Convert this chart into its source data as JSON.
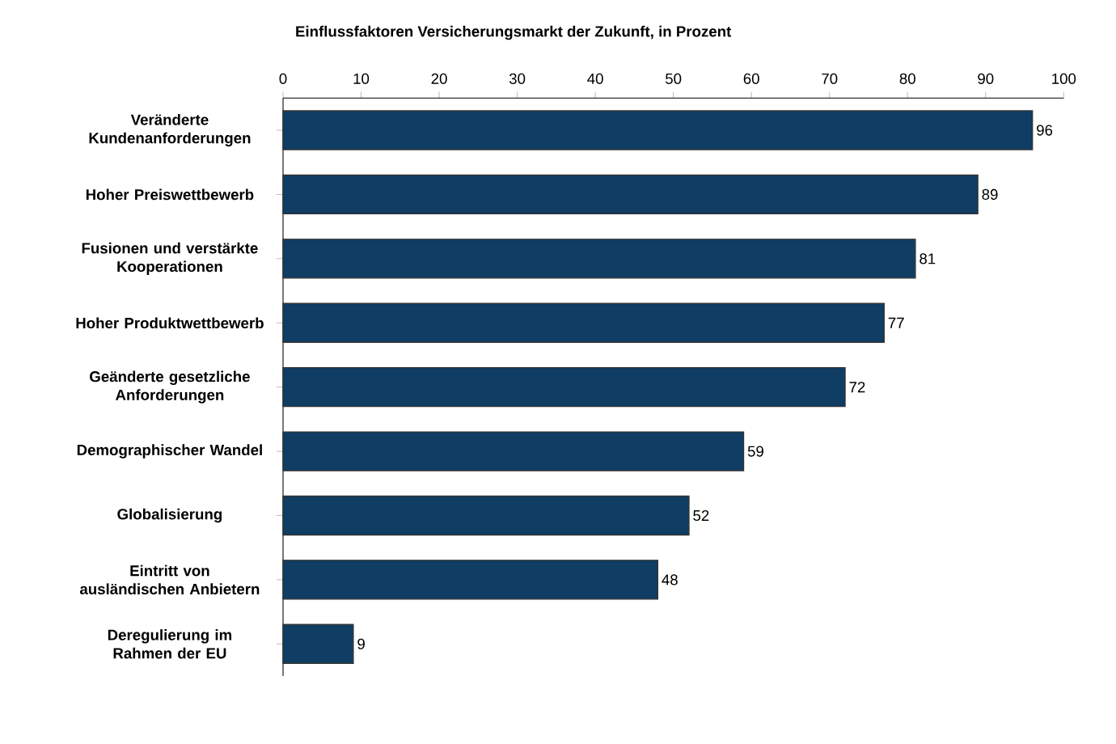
{
  "chart_data": {
    "type": "bar",
    "orientation": "horizontal",
    "title": "Einflussfaktoren Versicherungsmarkt der Zukunft, in Prozent",
    "categories": [
      "Veränderte Kundenanforderungen",
      "Hoher Preiswettbewerb",
      "Fusionen und verstärkte Kooperationen",
      "Hoher Produktwettbewerb",
      "Geänderte gesetzliche Anforderungen",
      "Demographischer Wandel",
      "Globalisierung",
      "Eintritt von ausländischen Anbietern",
      "Deregulierung im Rahmen der EU"
    ],
    "values": [
      96,
      89,
      81,
      77,
      72,
      59,
      52,
      48,
      9
    ],
    "color": "#0f3d63",
    "xlim": [
      0,
      100
    ],
    "xticks": [
      0,
      10,
      20,
      30,
      40,
      50,
      60,
      70,
      80,
      90,
      100
    ],
    "data_labels": true,
    "grid": false
  }
}
